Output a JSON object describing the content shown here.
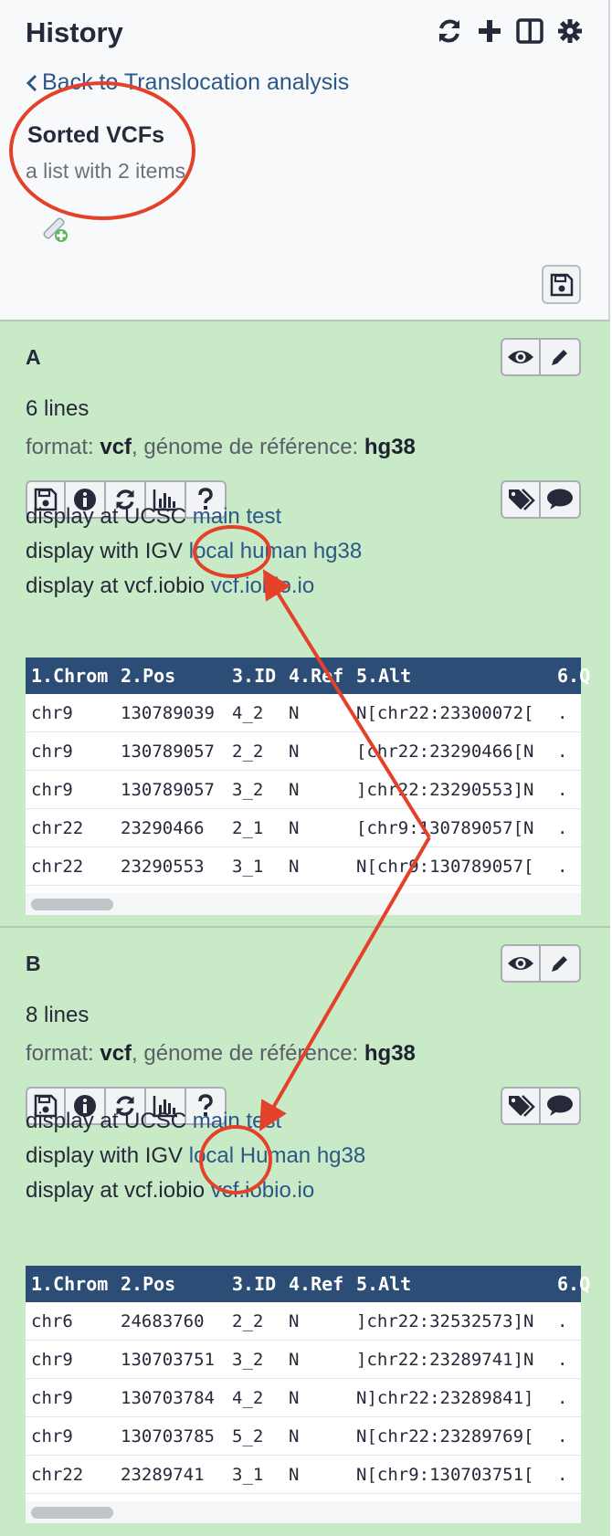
{
  "header": {
    "title": "History"
  },
  "back_link": {
    "label": "Back to Translocation analysis"
  },
  "collection": {
    "title": "Sorted VCFs",
    "subtitle": "a list with 2 items"
  },
  "datasets": [
    {
      "name": "A",
      "lines": "6 lines",
      "format_label": "format:",
      "format_value": "vcf",
      "genome_label": ", génome de référence:",
      "genome_value": "hg38",
      "ucsc_prefix": "display at UCSC",
      "ucsc_link1": "main",
      "ucsc_link2": "test",
      "igv_prefix": "display with IGV",
      "igv_link1": "local",
      "igv_link2": "human hg38",
      "iobio_prefix": "display at vcf.iobio",
      "iobio_link": "vcf.iobio.io",
      "columns": [
        "1.Chrom",
        "2.Pos",
        "3.ID",
        "4.Ref",
        "5.Alt",
        "6.Q"
      ],
      "rows": [
        [
          "chr9",
          "130789039",
          "4_2",
          "N",
          "N[chr22:23300072[",
          "."
        ],
        [
          "chr9",
          "130789057",
          "2_2",
          "N",
          "[chr22:23290466[N",
          "."
        ],
        [
          "chr9",
          "130789057",
          "3_2",
          "N",
          "]chr22:23290553]N",
          "."
        ],
        [
          "chr22",
          "23290466",
          "2_1",
          "N",
          "[chr9:130789057[N",
          "."
        ],
        [
          "chr22",
          "23290553",
          "3_1",
          "N",
          "N[chr9:130789057[",
          "."
        ]
      ]
    },
    {
      "name": "B",
      "lines": "8 lines",
      "format_label": "format:",
      "format_value": "vcf",
      "genome_label": ", génome de référence:",
      "genome_value": "hg38",
      "ucsc_prefix": "display at UCSC",
      "ucsc_link1": "main",
      "ucsc_link2": "test",
      "igv_prefix": "display with IGV",
      "igv_link1": "local",
      "igv_link2": "Human hg38",
      "iobio_prefix": "display at vcf.iobio",
      "iobio_link": "vcf.iobio.io",
      "columns": [
        "1.Chrom",
        "2.Pos",
        "3.ID",
        "4.Ref",
        "5.Alt",
        "6.Q"
      ],
      "rows": [
        [
          "chr6",
          "24683760",
          "2_2",
          "N",
          "]chr22:32532573]N",
          "."
        ],
        [
          "chr9",
          "130703751",
          "3_2",
          "N",
          "]chr22:23289741]N",
          "."
        ],
        [
          "chr9",
          "130703784",
          "4_2",
          "N",
          "N]chr22:23289841]",
          "."
        ],
        [
          "chr9",
          "130703785",
          "5_2",
          "N",
          "N[chr22:23289769[",
          "."
        ],
        [
          "chr22",
          "23289741",
          "3_1",
          "N",
          "N[chr9:130703751[",
          "."
        ]
      ]
    }
  ],
  "icons": {
    "header": [
      "refresh-icon",
      "plus-icon",
      "columns-icon",
      "gear-icon"
    ],
    "item_actions": [
      "eye-icon",
      "pencil-icon"
    ],
    "tools": [
      "save-icon",
      "info-icon",
      "refresh-icon",
      "chart-icon",
      "question-icon"
    ],
    "tools_right": [
      "tags-icon",
      "comment-icon"
    ]
  },
  "colors": {
    "link": "#2d5786",
    "ok_state": "#c9eac6",
    "peek_header": "#2c4d76",
    "annotation": "#e4412b"
  }
}
